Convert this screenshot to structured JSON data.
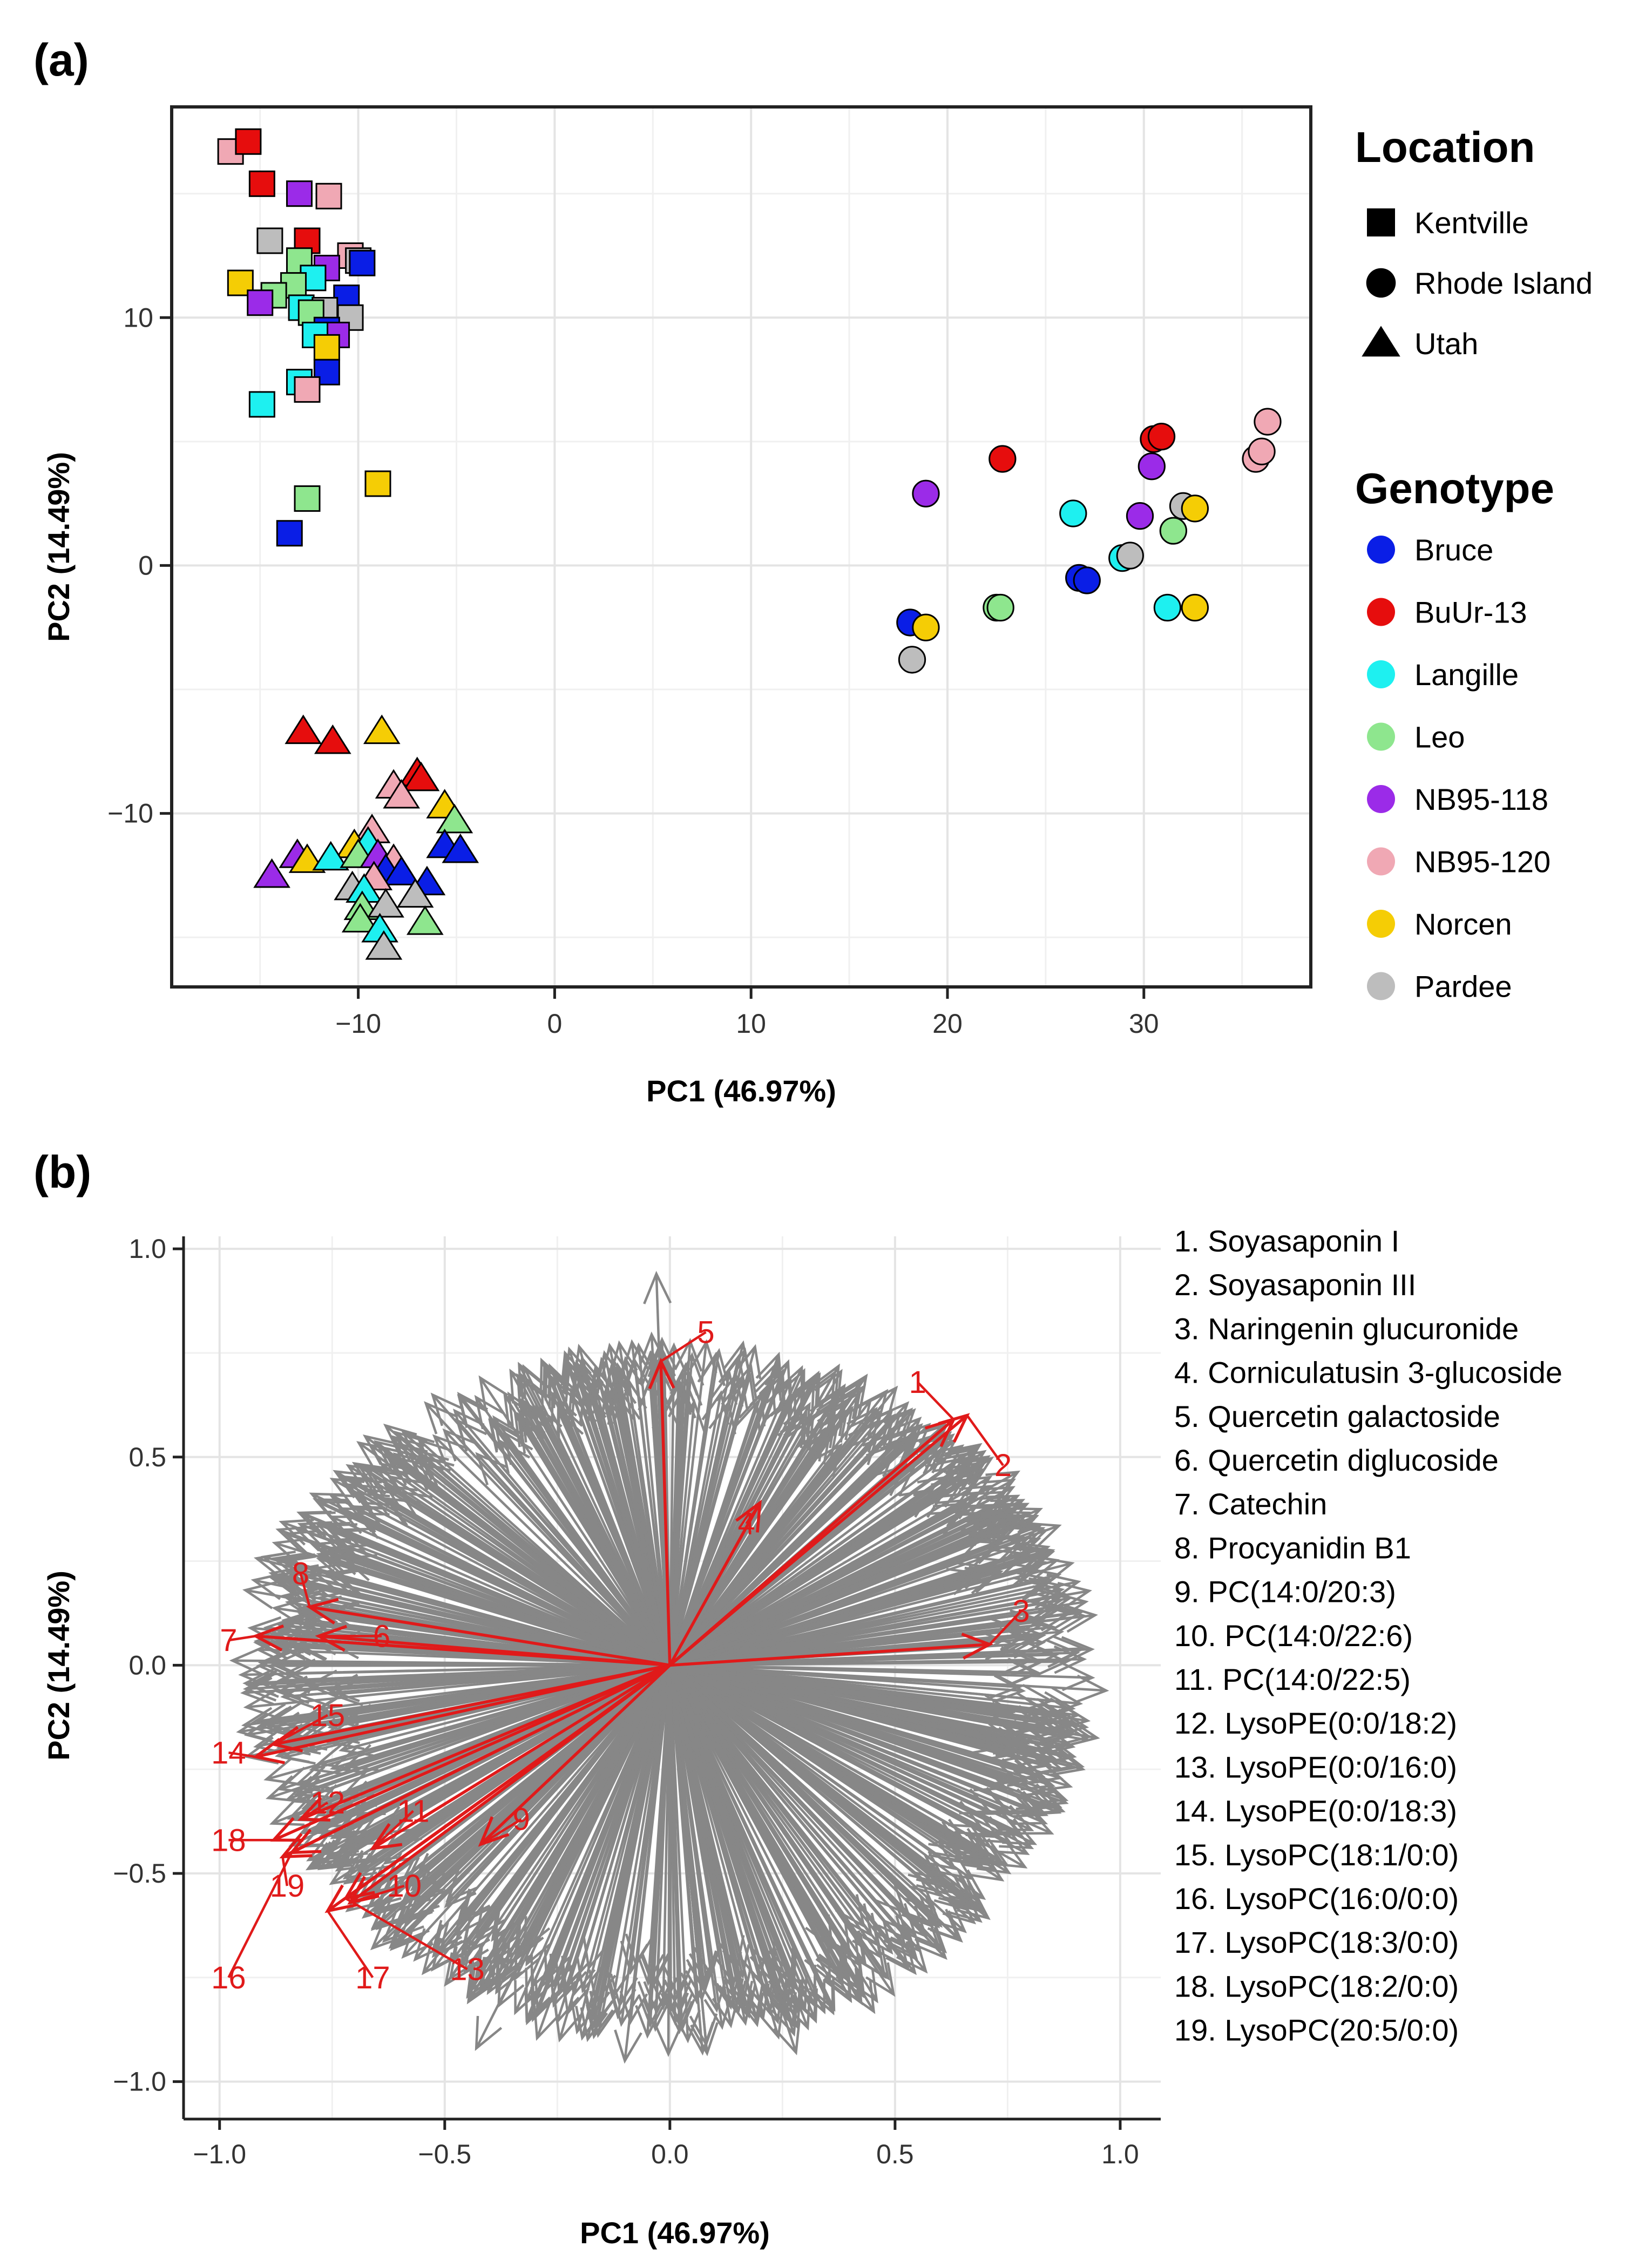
{
  "panel_a": {
    "label": "(a)"
  },
  "panel_b": {
    "label": "(b)"
  },
  "colors": {
    "Bruce": "#0a1ee6",
    "BuUr-13": "#e60d0d",
    "Langille": "#1ef0f0",
    "Leo": "#8ee68e",
    "NB95-118": "#9b2be8",
    "NB95-120": "#f0a8b4",
    "Norcen": "#f5cd05",
    "Pardee": "#bdbdbd",
    "loading": "#878787",
    "highlight": "#e01a1a"
  },
  "chart_data": [
    {
      "type": "scatter",
      "title": "",
      "xlabel": "PC1 (46.97%)",
      "ylabel": "PC2 (14.49%)",
      "xlim": [
        -19.5,
        38.5
      ],
      "ylim": [
        -17,
        18.5
      ],
      "xticks": [
        -10,
        0,
        10,
        20,
        30
      ],
      "xtick_labels": [
        "−10",
        "0",
        "10",
        "20",
        "30"
      ],
      "yticks": [
        -10,
        0,
        10
      ],
      "ytick_labels": [
        "−10",
        "0",
        "10"
      ],
      "grid": true,
      "legend_shape": {
        "title": "Location",
        "items": [
          {
            "label": "Kentville",
            "shape": "square"
          },
          {
            "label": "Rhode Island",
            "shape": "circle"
          },
          {
            "label": "Utah",
            "shape": "triangle"
          }
        ]
      },
      "legend_color": {
        "title": "Genotype",
        "items": [
          "Bruce",
          "BuUr-13",
          "Langille",
          "Leo",
          "NB95-118",
          "NB95-120",
          "Norcen",
          "Pardee"
        ]
      },
      "points": [
        {
          "x": -16.5,
          "y": 16.7,
          "location": "Kentville",
          "genotype": "NB95-120"
        },
        {
          "x": -15.6,
          "y": 17.1,
          "location": "Kentville",
          "genotype": "BuUr-13"
        },
        {
          "x": -14.9,
          "y": 15.4,
          "location": "Kentville",
          "genotype": "BuUr-13"
        },
        {
          "x": -13.0,
          "y": 15.0,
          "location": "Kentville",
          "genotype": "NB95-118"
        },
        {
          "x": -11.5,
          "y": 14.9,
          "location": "Kentville",
          "genotype": "NB95-120"
        },
        {
          "x": -14.5,
          "y": 13.1,
          "location": "Kentville",
          "genotype": "Pardee"
        },
        {
          "x": -12.6,
          "y": 13.1,
          "location": "Kentville",
          "genotype": "BuUr-13"
        },
        {
          "x": -10.4,
          "y": 12.5,
          "location": "Kentville",
          "genotype": "NB95-120"
        },
        {
          "x": -10.0,
          "y": 12.3,
          "location": "Kentville",
          "genotype": "Pardee"
        },
        {
          "x": -9.8,
          "y": 12.2,
          "location": "Kentville",
          "genotype": "Bruce"
        },
        {
          "x": -13.0,
          "y": 12.3,
          "location": "Kentville",
          "genotype": "Leo"
        },
        {
          "x": -11.6,
          "y": 12.0,
          "location": "Kentville",
          "genotype": "NB95-118"
        },
        {
          "x": -12.3,
          "y": 11.6,
          "location": "Kentville",
          "genotype": "Langille"
        },
        {
          "x": -16.0,
          "y": 11.4,
          "location": "Kentville",
          "genotype": "Norcen"
        },
        {
          "x": -13.3,
          "y": 11.3,
          "location": "Kentville",
          "genotype": "Leo"
        },
        {
          "x": -14.3,
          "y": 10.9,
          "location": "Kentville",
          "genotype": "Leo"
        },
        {
          "x": -15.0,
          "y": 10.6,
          "location": "Kentville",
          "genotype": "NB95-118"
        },
        {
          "x": -10.6,
          "y": 10.8,
          "location": "Kentville",
          "genotype": "Bruce"
        },
        {
          "x": -12.9,
          "y": 10.4,
          "location": "Kentville",
          "genotype": "Langille"
        },
        {
          "x": -11.7,
          "y": 10.3,
          "location": "Kentville",
          "genotype": "Pardee"
        },
        {
          "x": -12.4,
          "y": 10.2,
          "location": "Kentville",
          "genotype": "Leo"
        },
        {
          "x": -10.4,
          "y": 10.0,
          "location": "Kentville",
          "genotype": "Pardee"
        },
        {
          "x": -11.6,
          "y": 9.5,
          "location": "Kentville",
          "genotype": "Bruce"
        },
        {
          "x": -11.1,
          "y": 9.3,
          "location": "Kentville",
          "genotype": "NB95-118"
        },
        {
          "x": -12.2,
          "y": 9.3,
          "location": "Kentville",
          "genotype": "Langille"
        },
        {
          "x": -11.6,
          "y": 8.8,
          "location": "Kentville",
          "genotype": "Norcen"
        },
        {
          "x": -11.6,
          "y": 7.8,
          "location": "Kentville",
          "genotype": "Bruce"
        },
        {
          "x": -13.0,
          "y": 7.4,
          "location": "Kentville",
          "genotype": "Langille"
        },
        {
          "x": -12.6,
          "y": 7.1,
          "location": "Kentville",
          "genotype": "NB95-120"
        },
        {
          "x": -14.9,
          "y": 6.5,
          "location": "Kentville",
          "genotype": "Langille"
        },
        {
          "x": -9.0,
          "y": 3.3,
          "location": "Kentville",
          "genotype": "Norcen"
        },
        {
          "x": -12.6,
          "y": 2.7,
          "location": "Kentville",
          "genotype": "Leo"
        },
        {
          "x": -13.5,
          "y": 1.3,
          "location": "Kentville",
          "genotype": "Bruce"
        },
        {
          "x": 22.8,
          "y": 4.3,
          "location": "Rhode Island",
          "genotype": "BuUr-13"
        },
        {
          "x": 30.5,
          "y": 5.1,
          "location": "Rhode Island",
          "genotype": "BuUr-13"
        },
        {
          "x": 30.9,
          "y": 5.2,
          "location": "Rhode Island",
          "genotype": "BuUr-13"
        },
        {
          "x": 30.4,
          "y": 4.0,
          "location": "Rhode Island",
          "genotype": "NB95-118"
        },
        {
          "x": 36.3,
          "y": 5.8,
          "location": "Rhode Island",
          "genotype": "NB95-120"
        },
        {
          "x": 35.7,
          "y": 4.3,
          "location": "Rhode Island",
          "genotype": "NB95-120"
        },
        {
          "x": 36.0,
          "y": 4.6,
          "location": "Rhode Island",
          "genotype": "NB95-120"
        },
        {
          "x": 18.9,
          "y": 2.9,
          "location": "Rhode Island",
          "genotype": "NB95-118"
        },
        {
          "x": 26.4,
          "y": 2.1,
          "location": "Rhode Island",
          "genotype": "Langille"
        },
        {
          "x": 29.8,
          "y": 2.0,
          "location": "Rhode Island",
          "genotype": "NB95-118"
        },
        {
          "x": 32.0,
          "y": 2.4,
          "location": "Rhode Island",
          "genotype": "Pardee"
        },
        {
          "x": 32.6,
          "y": 2.3,
          "location": "Rhode Island",
          "genotype": "Norcen"
        },
        {
          "x": 31.5,
          "y": 1.4,
          "location": "Rhode Island",
          "genotype": "Leo"
        },
        {
          "x": 28.9,
          "y": 0.3,
          "location": "Rhode Island",
          "genotype": "Langille"
        },
        {
          "x": 29.3,
          "y": 0.4,
          "location": "Rhode Island",
          "genotype": "Pardee"
        },
        {
          "x": 26.7,
          "y": -0.5,
          "location": "Rhode Island",
          "genotype": "Bruce"
        },
        {
          "x": 27.1,
          "y": -0.6,
          "location": "Rhode Island",
          "genotype": "Bruce"
        },
        {
          "x": 22.5,
          "y": -1.7,
          "location": "Rhode Island",
          "genotype": "Leo"
        },
        {
          "x": 22.7,
          "y": -1.7,
          "location": "Rhode Island",
          "genotype": "Leo"
        },
        {
          "x": 31.2,
          "y": -1.7,
          "location": "Rhode Island",
          "genotype": "Langille"
        },
        {
          "x": 32.6,
          "y": -1.7,
          "location": "Rhode Island",
          "genotype": "Norcen"
        },
        {
          "x": 18.1,
          "y": -2.3,
          "location": "Rhode Island",
          "genotype": "Bruce"
        },
        {
          "x": 18.9,
          "y": -2.5,
          "location": "Rhode Island",
          "genotype": "Norcen"
        },
        {
          "x": 18.2,
          "y": -3.8,
          "location": "Rhode Island",
          "genotype": "Pardee"
        },
        {
          "x": -12.8,
          "y": -6.7,
          "location": "Utah",
          "genotype": "BuUr-13"
        },
        {
          "x": -11.3,
          "y": -7.1,
          "location": "Utah",
          "genotype": "BuUr-13"
        },
        {
          "x": -8.8,
          "y": -6.7,
          "location": "Utah",
          "genotype": "Norcen"
        },
        {
          "x": -7.0,
          "y": -8.4,
          "location": "Utah",
          "genotype": "BuUr-13"
        },
        {
          "x": -6.8,
          "y": -8.6,
          "location": "Utah",
          "genotype": "BuUr-13"
        },
        {
          "x": -8.2,
          "y": -8.9,
          "location": "Utah",
          "genotype": "NB95-120"
        },
        {
          "x": -7.8,
          "y": -9.3,
          "location": "Utah",
          "genotype": "NB95-120"
        },
        {
          "x": -5.6,
          "y": -9.7,
          "location": "Utah",
          "genotype": "Norcen"
        },
        {
          "x": -5.1,
          "y": -10.3,
          "location": "Utah",
          "genotype": "Leo"
        },
        {
          "x": -9.3,
          "y": -10.7,
          "location": "Utah",
          "genotype": "NB95-120"
        },
        {
          "x": -10.2,
          "y": -11.3,
          "location": "Utah",
          "genotype": "Norcen"
        },
        {
          "x": -9.5,
          "y": -11.2,
          "location": "Utah",
          "genotype": "Langille"
        },
        {
          "x": -5.6,
          "y": -11.3,
          "location": "Utah",
          "genotype": "Bruce"
        },
        {
          "x": -4.8,
          "y": -11.5,
          "location": "Utah",
          "genotype": "Bruce"
        },
        {
          "x": -13.1,
          "y": -11.7,
          "location": "Utah",
          "genotype": "NB95-118"
        },
        {
          "x": -12.6,
          "y": -11.9,
          "location": "Utah",
          "genotype": "Norcen"
        },
        {
          "x": -11.4,
          "y": -11.8,
          "location": "Utah",
          "genotype": "Langille"
        },
        {
          "x": -10.0,
          "y": -11.7,
          "location": "Utah",
          "genotype": "Leo"
        },
        {
          "x": -9.0,
          "y": -11.7,
          "location": "Utah",
          "genotype": "NB95-118"
        },
        {
          "x": -8.2,
          "y": -11.9,
          "location": "Utah",
          "genotype": "NB95-120"
        },
        {
          "x": -8.6,
          "y": -12.3,
          "location": "Utah",
          "genotype": "Bruce"
        },
        {
          "x": -7.8,
          "y": -12.4,
          "location": "Utah",
          "genotype": "Bruce"
        },
        {
          "x": -14.4,
          "y": -12.5,
          "location": "Utah",
          "genotype": "NB95-118"
        },
        {
          "x": -9.2,
          "y": -12.6,
          "location": "Utah",
          "genotype": "NB95-120"
        },
        {
          "x": -6.5,
          "y": -12.8,
          "location": "Utah",
          "genotype": "Bruce"
        },
        {
          "x": -10.3,
          "y": -13.0,
          "location": "Utah",
          "genotype": "Pardee"
        },
        {
          "x": -9.7,
          "y": -13.1,
          "location": "Utah",
          "genotype": "Langille"
        },
        {
          "x": -7.1,
          "y": -13.3,
          "location": "Utah",
          "genotype": "Pardee"
        },
        {
          "x": -9.8,
          "y": -13.8,
          "location": "Utah",
          "genotype": "Leo"
        },
        {
          "x": -8.6,
          "y": -13.7,
          "location": "Utah",
          "genotype": "Pardee"
        },
        {
          "x": -9.9,
          "y": -14.3,
          "location": "Utah",
          "genotype": "Leo"
        },
        {
          "x": -6.6,
          "y": -14.4,
          "location": "Utah",
          "genotype": "Leo"
        },
        {
          "x": -8.9,
          "y": -14.7,
          "location": "Utah",
          "genotype": "Langille"
        },
        {
          "x": -8.7,
          "y": -15.4,
          "location": "Utah",
          "genotype": "Pardee"
        }
      ]
    },
    {
      "type": "scatter",
      "subtype": "biplot-loadings",
      "title": "",
      "xlabel": "PC1 (46.97%)",
      "ylabel": "PC2 (14.49%)",
      "xlim": [
        -1.08,
        1.09
      ],
      "ylim": [
        -1.09,
        1.03
      ],
      "xticks": [
        -1.0,
        -0.5,
        0.0,
        0.5,
        1.0
      ],
      "xtick_labels": [
        "−1.0",
        "−0.5",
        "0.0",
        "0.5",
        "1.0"
      ],
      "yticks": [
        -1.0,
        -0.5,
        0.0,
        0.5,
        1.0
      ],
      "ytick_labels": [
        "−1.0",
        "−0.5",
        "0.0",
        "0.5",
        "1.0"
      ],
      "grid": true,
      "background_arrow_count": 900,
      "background_envelope": {
        "left": -0.98,
        "right": 0.98,
        "top": 0.8,
        "bottom": -0.95
      },
      "highlighted_loadings": [
        {
          "id": "1",
          "x": 0.63,
          "y": 0.59,
          "lx": 0.55,
          "ly": 0.68
        },
        {
          "id": "2",
          "x": 0.66,
          "y": 0.6,
          "lx": 0.74,
          "ly": 0.48
        },
        {
          "id": "3",
          "x": 0.71,
          "y": 0.05,
          "lx": 0.78,
          "ly": 0.13
        },
        {
          "id": "4",
          "x": 0.2,
          "y": 0.39,
          "lx": 0.17,
          "ly": 0.34
        },
        {
          "id": "5",
          "x": -0.02,
          "y": 0.73,
          "lx": 0.08,
          "ly": 0.8
        },
        {
          "id": "6",
          "x": -0.78,
          "y": 0.07,
          "lx": -0.64,
          "ly": 0.07
        },
        {
          "id": "7",
          "x": -0.92,
          "y": 0.07,
          "lx": -0.98,
          "ly": 0.06
        },
        {
          "id": "8",
          "x": -0.8,
          "y": 0.14,
          "lx": -0.82,
          "ly": 0.22
        },
        {
          "id": "9",
          "x": -0.42,
          "y": -0.43,
          "lx": -0.33,
          "ly": -0.37
        },
        {
          "id": "10",
          "x": -0.71,
          "y": -0.57,
          "lx": -0.59,
          "ly": -0.53
        },
        {
          "id": "11",
          "x": -0.66,
          "y": -0.44,
          "lx": -0.57,
          "ly": -0.35
        },
        {
          "id": "12",
          "x": -0.82,
          "y": -0.37,
          "lx": -0.76,
          "ly": -0.33
        },
        {
          "id": "13",
          "x": -0.72,
          "y": -0.56,
          "lx": -0.45,
          "ly": -0.73
        },
        {
          "id": "14",
          "x": -0.92,
          "y": -0.22,
          "lx": -0.98,
          "ly": -0.21
        },
        {
          "id": "15",
          "x": -0.88,
          "y": -0.19,
          "lx": -0.76,
          "ly": -0.12
        },
        {
          "id": "16",
          "x": -0.84,
          "y": -0.45,
          "lx": -0.98,
          "ly": -0.75
        },
        {
          "id": "17",
          "x": -0.76,
          "y": -0.59,
          "lx": -0.66,
          "ly": -0.75
        },
        {
          "id": "18",
          "x": -0.88,
          "y": -0.42,
          "lx": -0.98,
          "ly": -0.42
        },
        {
          "id": "19",
          "x": -0.86,
          "y": -0.46,
          "lx": -0.85,
          "ly": -0.53
        }
      ],
      "legend_items": [
        "1. Soyasaponin I",
        "2. Soyasaponin III",
        "3. Naringenin glucuronide",
        "4. Corniculatusin 3-glucoside",
        "5. Quercetin galactoside",
        "6. Quercetin diglucoside",
        "7. Catechin",
        "8. Procyanidin B1",
        "9. PC(14:0/20:3)",
        "10. PC(14:0/22:6)",
        "11. PC(14:0/22:5)",
        "12. LysoPE(0:0/18:2)",
        "13. LysoPE(0:0/16:0)",
        "14. LysoPE(0:0/18:3)",
        "15. LysoPC(18:1/0:0)",
        "16. LysoPC(16:0/0:0)",
        "17. LysoPC(18:3/0:0)",
        "18. LysoPC(18:2/0:0)",
        "19. LysoPC(20:5/0:0)"
      ]
    }
  ]
}
